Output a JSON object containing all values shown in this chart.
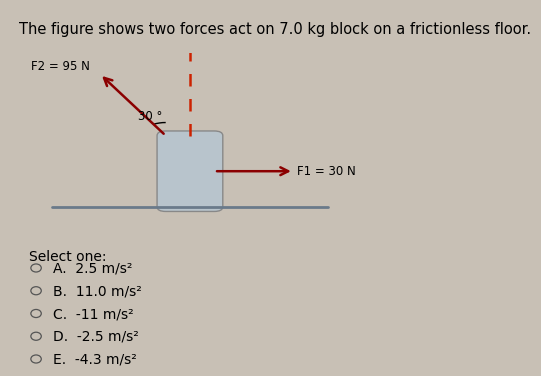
{
  "title": "The figure shows two forces act on 7.0 kg block on a frictionless floor.",
  "title_fontsize": 10.5,
  "page_bg": "#c8c0b5",
  "diagram_bg": "#f0ebe0",
  "block_color": "#b8c4cc",
  "block_edge": "#888888",
  "arrow_color": "#8b0000",
  "floor_color": "#6a7a8a",
  "dashed_color": "#cc2200",
  "f1_label": "F1 = 30 N",
  "f2_label": "F2 = 95 N",
  "angle_label": "30 °",
  "select_one": "Select one:",
  "options": [
    "A.  2.5 m/s²",
    "B.  11.0 m/s²",
    "C.  -11 m/s²",
    "D.  -2.5 m/s²",
    "E.  -4.3 m/s²"
  ],
  "option_fontsize": 10,
  "select_fontsize": 10
}
